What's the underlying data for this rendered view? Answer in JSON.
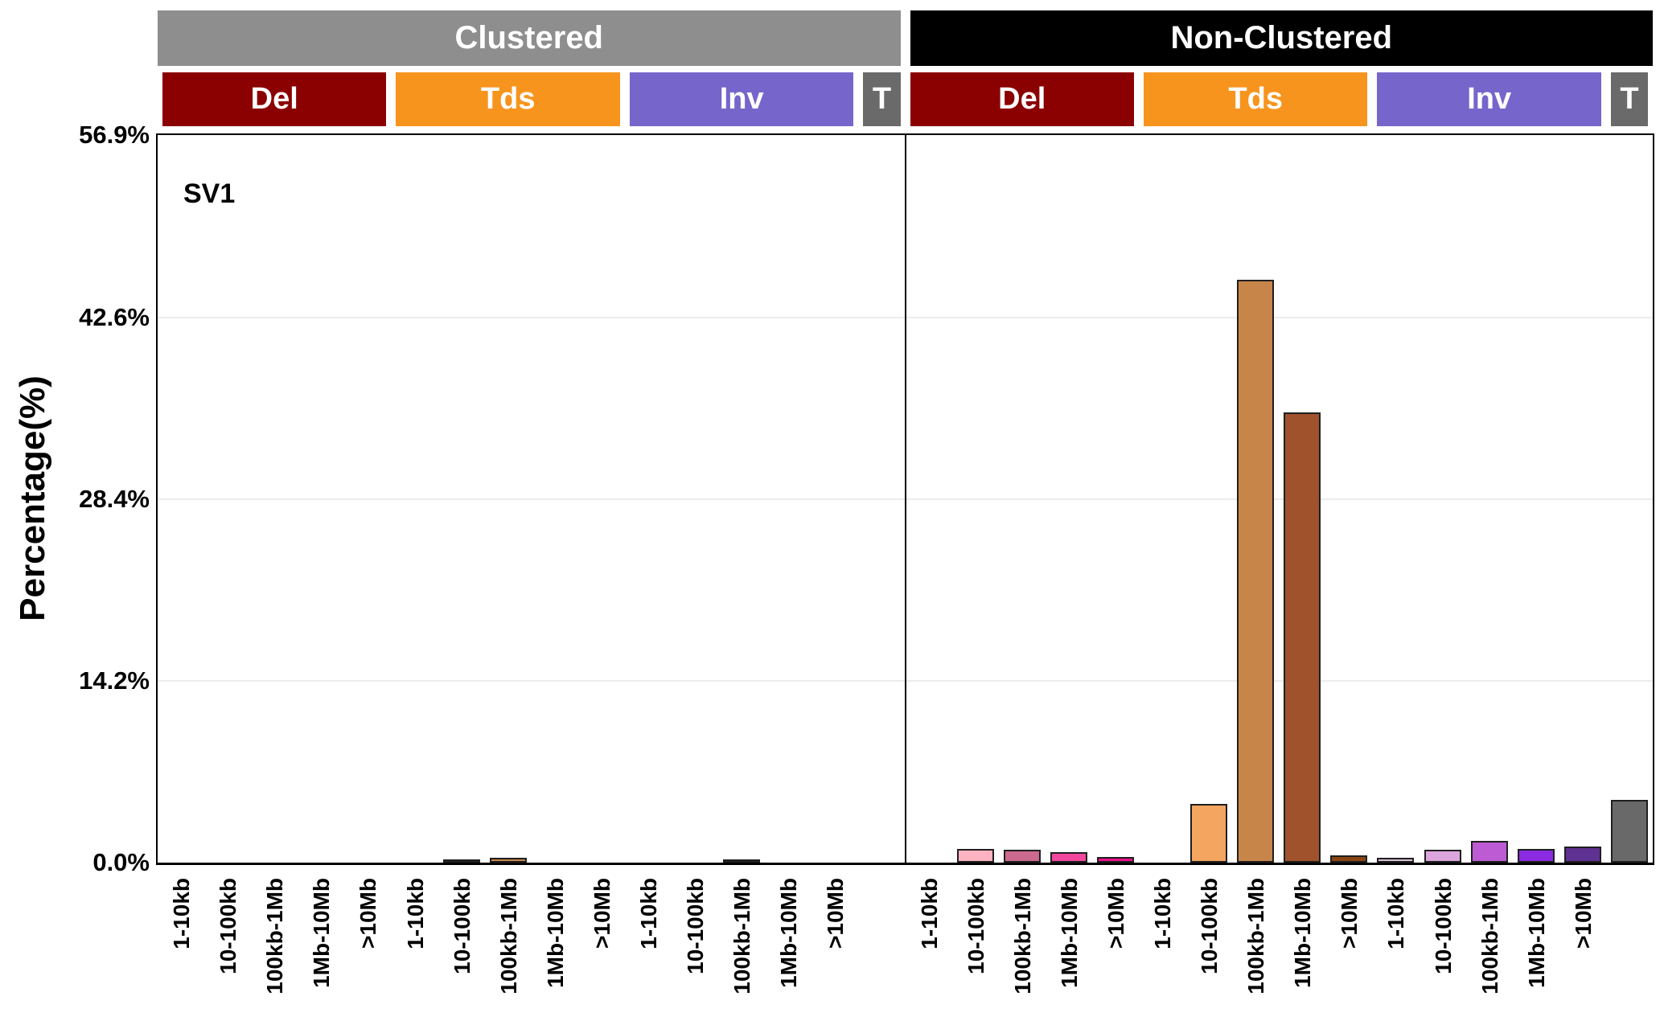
{
  "figure": {
    "panel_title": "SV1",
    "ylabel": "Percentage(%)"
  },
  "chart_data": {
    "type": "bar",
    "title": "SV1",
    "xlabel": "",
    "ylabel": "Percentage(%)",
    "ylim": [
      0,
      56.9
    ],
    "grid": "horizontal",
    "yticks": [
      {
        "value": 0.0,
        "label": "0.0%"
      },
      {
        "value": 14.2,
        "label": "14.2%"
      },
      {
        "value": 28.4,
        "label": "28.4%"
      },
      {
        "value": 42.6,
        "label": "42.6%"
      },
      {
        "value": 56.9,
        "label": "56.9%"
      }
    ],
    "size_bins": [
      "1-10kb",
      "10-100kb",
      "100kb-1Mb",
      "1Mb-10Mb",
      ">10Mb"
    ],
    "category_colors": {
      "Del": "#8B0000",
      "Tds": "#F7941E",
      "Inv": "#7666CB",
      "T": "#6A6A6A"
    },
    "bar_palettes": {
      "Del": [
        "#FFC9D2",
        "#FFB3C1",
        "#CB6A8E",
        "#F2479F",
        "#EC0E8A"
      ],
      "Tds": [
        "#F6D7B0",
        "#F4A560",
        "#C8854A",
        "#A0522D",
        "#8B4513"
      ],
      "Inv": [
        "#D6C2D8",
        "#DCA6DC",
        "#BC5BD3",
        "#8A2BE2",
        "#5E3192"
      ],
      "T": [
        "#696969"
      ]
    },
    "panels": [
      {
        "name": "Clustered",
        "header_bg": "#8E8E8E",
        "header_fg": "#FFFFFF",
        "categories": [
          {
            "name": "Del",
            "values": [
              0,
              0,
              0,
              0,
              0
            ]
          },
          {
            "name": "Tds",
            "values": [
              0,
              0.2,
              0.35,
              0,
              0
            ]
          },
          {
            "name": "Inv",
            "values": [
              0,
              0,
              0.15,
              0,
              0
            ]
          },
          {
            "name": "T",
            "values": [
              0
            ]
          }
        ]
      },
      {
        "name": "Non-Clustered",
        "header_bg": "#000000",
        "header_fg": "#FFFFFF",
        "categories": [
          {
            "name": "Del",
            "values": [
              0,
              1.1,
              1.0,
              0.8,
              0.45
            ]
          },
          {
            "name": "Tds",
            "values": [
              0,
              4.6,
              45.6,
              35.2,
              0.55
            ]
          },
          {
            "name": "Inv",
            "values": [
              0.4,
              1.0,
              1.7,
              1.1,
              1.25
            ]
          },
          {
            "name": "T",
            "values": [
              4.9
            ]
          }
        ]
      }
    ]
  }
}
